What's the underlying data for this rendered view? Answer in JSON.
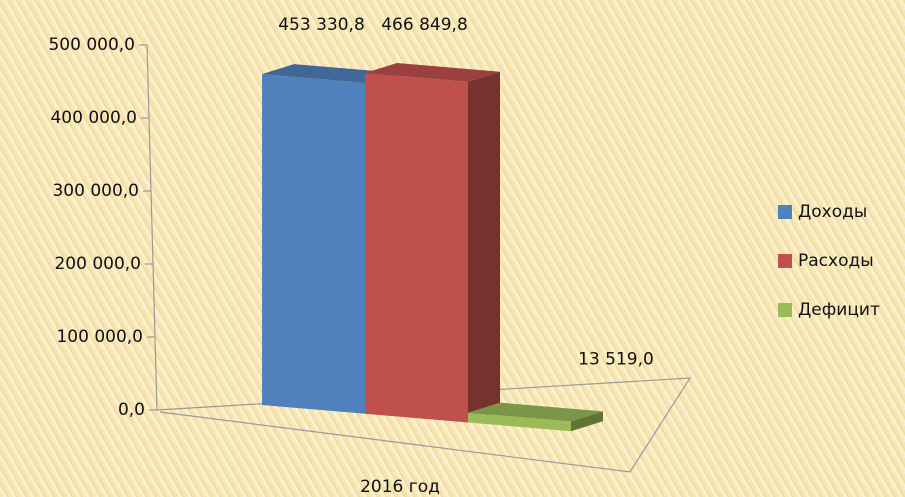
{
  "chart_data": {
    "type": "bar3d",
    "categories": [
      "2016 год"
    ],
    "series": [
      {
        "name": "Доходы",
        "color": "#4f81bd",
        "values": [
          453330.8
        ],
        "value_labels": [
          "453 330,8"
        ]
      },
      {
        "name": "Расходы",
        "color": "#c0504d",
        "values": [
          466849.8
        ],
        "value_labels": [
          "466 849,8"
        ]
      },
      {
        "name": "Дефицит",
        "color": "#9bbb59",
        "values": [
          13519.0
        ],
        "value_labels": [
          "13 519,0"
        ]
      }
    ],
    "ylim": [
      0,
      500000
    ],
    "yticks": [
      {
        "value": 0,
        "label": "0,0"
      },
      {
        "value": 100000,
        "label": "100 000,0"
      },
      {
        "value": 200000,
        "label": "200 000,0"
      },
      {
        "value": 300000,
        "label": "300 000,0"
      },
      {
        "value": 400000,
        "label": "400 000,0"
      },
      {
        "value": 500000,
        "label": "500 000,0"
      }
    ],
    "legend": "right"
  }
}
